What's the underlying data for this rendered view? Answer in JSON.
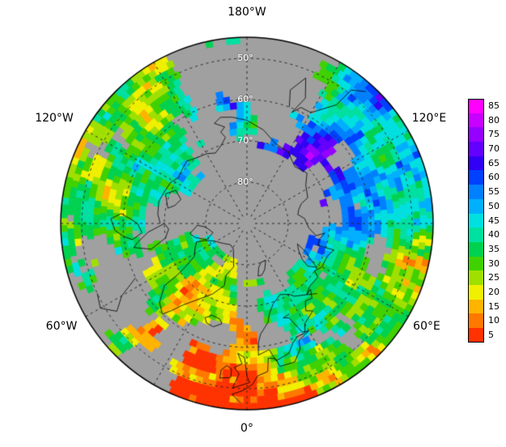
{
  "map": {
    "projection": "north-polar-stereographic",
    "meridian_labels": [
      {
        "label": "180°W"
      },
      {
        "label": "120°W"
      },
      {
        "label": "120°E"
      },
      {
        "label": "60°W"
      },
      {
        "label": "60°E"
      },
      {
        "label": "0°"
      }
    ],
    "parallel_labels": [
      {
        "label": "50°"
      },
      {
        "label": "60°"
      },
      {
        "label": "70°"
      },
      {
        "label": "80°"
      }
    ],
    "colors": {
      "no_data_land": "#a0a0a0",
      "graticule": "#2a2a2a",
      "coastline": "#000000",
      "outline": "#000000",
      "background": "#ffffff"
    },
    "graticule_style": "dashed"
  },
  "legend": {
    "entries": [
      {
        "value": 85,
        "color": "#ff00ff"
      },
      {
        "value": 80,
        "color": "#c800ff"
      },
      {
        "value": 75,
        "color": "#9600ff"
      },
      {
        "value": 70,
        "color": "#6400ff"
      },
      {
        "value": 65,
        "color": "#3200f5"
      },
      {
        "value": 60,
        "color": "#0040ff"
      },
      {
        "value": 55,
        "color": "#0080ff"
      },
      {
        "value": 50,
        "color": "#00b0ff"
      },
      {
        "value": 45,
        "color": "#00e0e0"
      },
      {
        "value": 40,
        "color": "#00e0a0"
      },
      {
        "value": 35,
        "color": "#00d250"
      },
      {
        "value": 30,
        "color": "#40d200"
      },
      {
        "value": 25,
        "color": "#a0e000"
      },
      {
        "value": 20,
        "color": "#f0f000"
      },
      {
        "value": 15,
        "color": "#ffb400"
      },
      {
        "value": 10,
        "color": "#ff7800"
      },
      {
        "value": 5,
        "color": "#ff3200"
      }
    ]
  },
  "chart_data": {
    "type": "heatmap",
    "projection": "north-polar-stereographic",
    "value_scale": {
      "min": 5,
      "max": 85,
      "step": 5
    },
    "legend_values": [
      85,
      80,
      75,
      70,
      65,
      60,
      55,
      50,
      45,
      40,
      35,
      30,
      25,
      20,
      15,
      10,
      5
    ],
    "legend_colors": [
      "#ff00ff",
      "#c800ff",
      "#9600ff",
      "#6400ff",
      "#3200f5",
      "#0040ff",
      "#0080ff",
      "#00b0ff",
      "#00e0e0",
      "#00e0a0",
      "#00d250",
      "#40d200",
      "#a0e000",
      "#f0f000",
      "#ffb400",
      "#ff7800",
      "#ff3200"
    ],
    "parallels_shown": [
      50,
      60,
      70,
      80
    ],
    "meridians_shown_deg": 30
  }
}
